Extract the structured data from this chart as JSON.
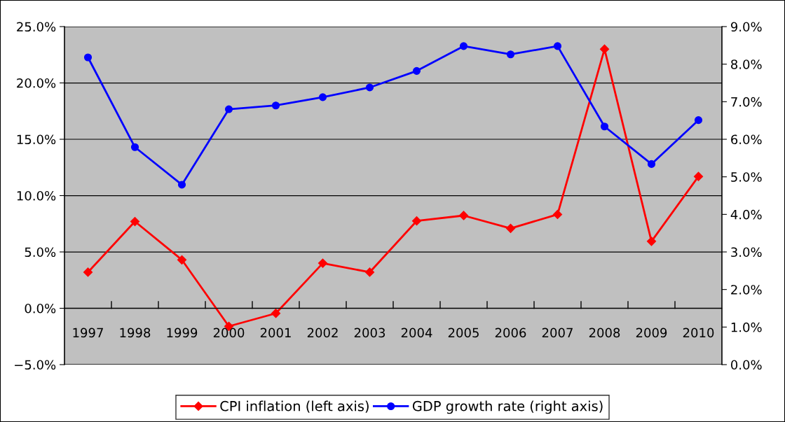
{
  "chart_data": {
    "type": "line",
    "categories": [
      "1997",
      "1998",
      "1999",
      "2000",
      "2001",
      "2002",
      "2003",
      "2004",
      "2005",
      "2006",
      "2007",
      "2008",
      "2009",
      "2010"
    ],
    "series": [
      {
        "name": "CPI inflation (left axis)",
        "color": "#ff0000",
        "marker": "diamond",
        "values": [
          3.2,
          7.7,
          4.3,
          -1.6,
          -0.45,
          4.0,
          3.2,
          7.75,
          8.23,
          7.09,
          8.33,
          23.0,
          5.94,
          11.7
        ]
      },
      {
        "name": "GDP growth rate (right axis)",
        "color": "#0000ff",
        "marker": "circle",
        "axis": "y2",
        "values": [
          8.18,
          5.79,
          4.79,
          6.8,
          6.9,
          7.12,
          7.38,
          7.82,
          8.48,
          8.26,
          8.48,
          6.34,
          5.34,
          6.51
        ]
      }
    ],
    "ylim": [
      -5,
      25
    ],
    "yticks": [
      {
        "value": -5,
        "label": "−5.0%"
      },
      {
        "value": 0,
        "label": "0.0%"
      },
      {
        "value": 5,
        "label": "5.0%"
      },
      {
        "value": 10,
        "label": "10.0%"
      },
      {
        "value": 15,
        "label": "15.0%"
      },
      {
        "value": 20,
        "label": "20.0%"
      },
      {
        "value": 25,
        "label": "25.0%"
      }
    ],
    "y2lim": [
      0,
      9
    ],
    "y2ticks": [
      {
        "value": 0,
        "label": "0.0%"
      },
      {
        "value": 1,
        "label": "1.0%"
      },
      {
        "value": 2,
        "label": "2.0%"
      },
      {
        "value": 3,
        "label": "3.0%"
      },
      {
        "value": 4,
        "label": "4.0%"
      },
      {
        "value": 5,
        "label": "5.0%"
      },
      {
        "value": 6,
        "label": "6.0%"
      },
      {
        "value": 7,
        "label": "7.0%"
      },
      {
        "value": 8,
        "label": "8.0%"
      },
      {
        "value": 9,
        "label": "9.0%"
      }
    ],
    "grid": "y",
    "legend": "bottom",
    "line_style": "solid"
  }
}
